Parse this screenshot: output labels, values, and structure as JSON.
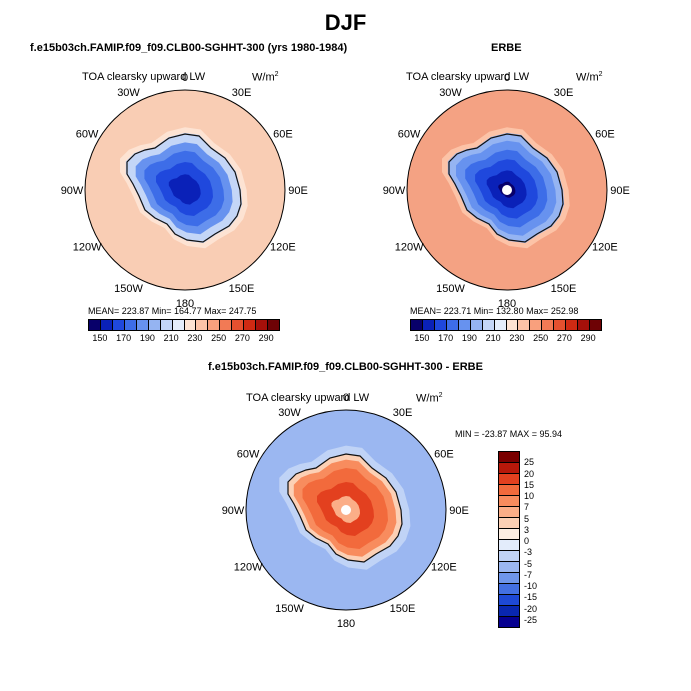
{
  "season": "DJF",
  "variable": "TOA clearsky upward LW",
  "units_prefix": "W/m",
  "units_exp": "2",
  "panels": [
    {
      "title": "f.e15b03ch.FAMIP.f09_f09.CLB00-SGHHT-300 (yrs 1980-1984)",
      "stats": "MEAN= 223.87   Min= 164.77   Max= 247.75",
      "mean": 223.87,
      "min": 164.77,
      "max": 247.75
    },
    {
      "title": "ERBE",
      "stats": "MEAN= 223.71   Min= 132.80   Max= 252.98",
      "mean": 223.71,
      "min": 132.8,
      "max": 252.98
    }
  ],
  "diff_panel": {
    "title": "f.e15b03ch.FAMIP.f09_f09.CLB00-SGHHT-300 - ERBE",
    "minmax_text": "MIN = -23.87  MAX =  95.94",
    "min": -23.87,
    "max": 95.94
  },
  "lon_labels": [
    "0",
    "30E",
    "60E",
    "90E",
    "120E",
    "150E",
    "180",
    "150W",
    "120W",
    "90W",
    "60W",
    "30W"
  ],
  "abs_colorbar": {
    "tick_labels": [
      "150",
      "170",
      "190",
      "210",
      "230",
      "250",
      "270",
      "290"
    ],
    "colors": [
      "#08006a",
      "#0a21b8",
      "#1f48dd",
      "#3d6de8",
      "#6792ef",
      "#95b4f2",
      "#c4d6f7",
      "#e4edfb",
      "#fde3d3",
      "#fcc3a7",
      "#f9a07d",
      "#f27a55",
      "#e5502f",
      "#cf2a13",
      "#a5100a",
      "#6e0205"
    ]
  },
  "diff_colorbar": {
    "tick_labels": [
      "25",
      "20",
      "15",
      "10",
      "7",
      "5",
      "3",
      "0",
      "-3",
      "-5",
      "-7",
      "-10",
      "-15",
      "-20",
      "-25"
    ],
    "colors": [
      "#7a0000",
      "#b8180a",
      "#e3401f",
      "#f26a3c",
      "#f88c5e",
      "#fbae88",
      "#fcd0b5",
      "#fdeee3",
      "#e3ecfb",
      "#c0d3f6",
      "#9bb7f1",
      "#6f96eb",
      "#4370e3",
      "#1e49d6",
      "#0927b0",
      "#060090"
    ]
  },
  "colors": {
    "ocean_model": "#f9cdb4",
    "ocean_obs": "#f4a283",
    "ice_edge": "#111111"
  }
}
